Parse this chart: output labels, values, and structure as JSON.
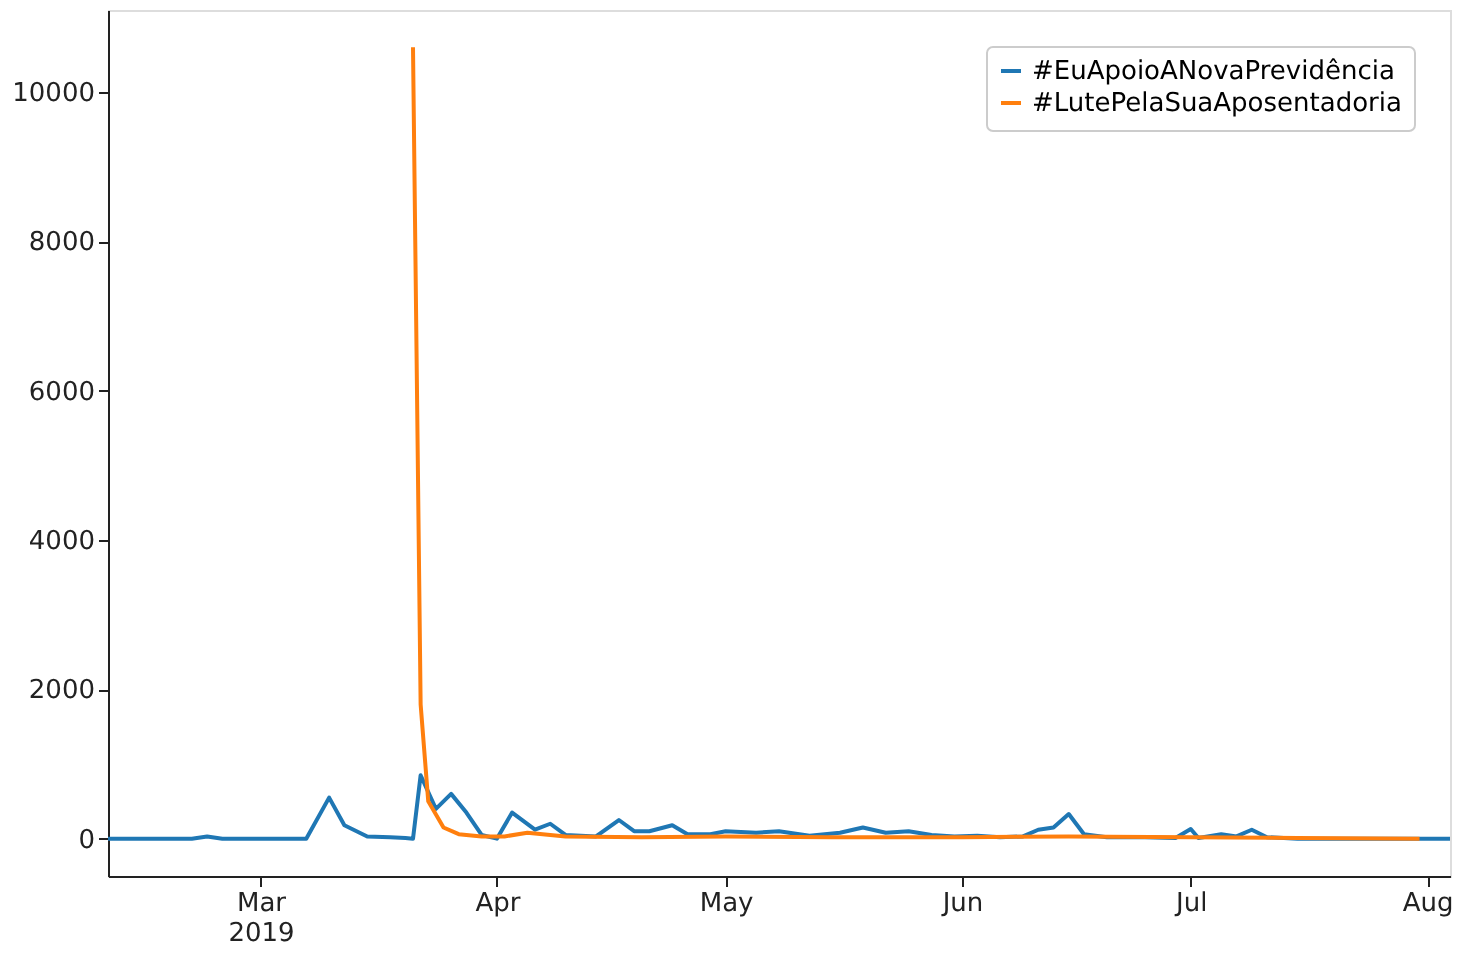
{
  "chart_data": {
    "type": "line",
    "xlim": [
      "2019-02-09",
      "2019-08-04"
    ],
    "ylim": [
      -500,
      11100
    ],
    "xticks": [
      {
        "value": "2019-03-01",
        "label": "Mar\n2019"
      },
      {
        "value": "2019-04-01",
        "label": "Apr"
      },
      {
        "value": "2019-05-01",
        "label": "May"
      },
      {
        "value": "2019-06-01",
        "label": "Jun"
      },
      {
        "value": "2019-07-01",
        "label": "Jul"
      },
      {
        "value": "2019-08-01",
        "label": "Aug"
      }
    ],
    "yticks": [
      0,
      2000,
      4000,
      6000,
      8000,
      10000
    ],
    "grid": false,
    "legend": "top right",
    "marker": "none",
    "line_style": "solid",
    "series": [
      {
        "name": "#EuApoioANovaPrevidência",
        "color": "#1f77b4",
        "x": [
          "2019-02-09",
          "2019-02-20",
          "2019-02-22",
          "2019-02-24",
          "2019-03-07",
          "2019-03-10",
          "2019-03-12",
          "2019-03-15",
          "2019-03-18",
          "2019-03-20",
          "2019-03-21",
          "2019-03-22",
          "2019-03-24",
          "2019-03-26",
          "2019-03-28",
          "2019-03-30",
          "2019-04-01",
          "2019-04-03",
          "2019-04-06",
          "2019-04-08",
          "2019-04-10",
          "2019-04-14",
          "2019-04-17",
          "2019-04-19",
          "2019-04-21",
          "2019-04-24",
          "2019-04-26",
          "2019-04-29",
          "2019-05-01",
          "2019-05-05",
          "2019-05-08",
          "2019-05-12",
          "2019-05-16",
          "2019-05-19",
          "2019-05-22",
          "2019-05-25",
          "2019-05-28",
          "2019-05-31",
          "2019-06-03",
          "2019-06-06",
          "2019-06-09",
          "2019-06-11",
          "2019-06-13",
          "2019-06-15",
          "2019-06-17",
          "2019-06-20",
          "2019-06-25",
          "2019-06-29",
          "2019-07-01",
          "2019-07-02",
          "2019-07-05",
          "2019-07-07",
          "2019-07-09",
          "2019-07-11",
          "2019-07-15",
          "2019-08-04"
        ],
        "values": [
          0,
          0,
          30,
          0,
          0,
          550,
          180,
          30,
          20,
          10,
          0,
          850,
          400,
          600,
          350,
          50,
          0,
          350,
          120,
          200,
          50,
          30,
          250,
          100,
          100,
          180,
          60,
          60,
          100,
          80,
          100,
          40,
          80,
          150,
          80,
          100,
          50,
          30,
          40,
          20,
          30,
          120,
          150,
          330,
          60,
          20,
          20,
          10,
          130,
          10,
          60,
          30,
          120,
          20,
          0,
          0
        ]
      },
      {
        "name": "#LutePelaSuaAposentadoria",
        "color": "#ff7f0e",
        "x": [
          "2019-03-21",
          "2019-03-22",
          "2019-03-23",
          "2019-03-25",
          "2019-03-27",
          "2019-03-30",
          "2019-04-02",
          "2019-04-05",
          "2019-04-10",
          "2019-04-20",
          "2019-05-01",
          "2019-05-15",
          "2019-06-01",
          "2019-06-15",
          "2019-07-01",
          "2019-07-15",
          "2019-07-31"
        ],
        "values": [
          10600,
          1800,
          500,
          150,
          60,
          30,
          30,
          80,
          30,
          20,
          30,
          20,
          20,
          30,
          20,
          10,
          0
        ]
      }
    ]
  }
}
